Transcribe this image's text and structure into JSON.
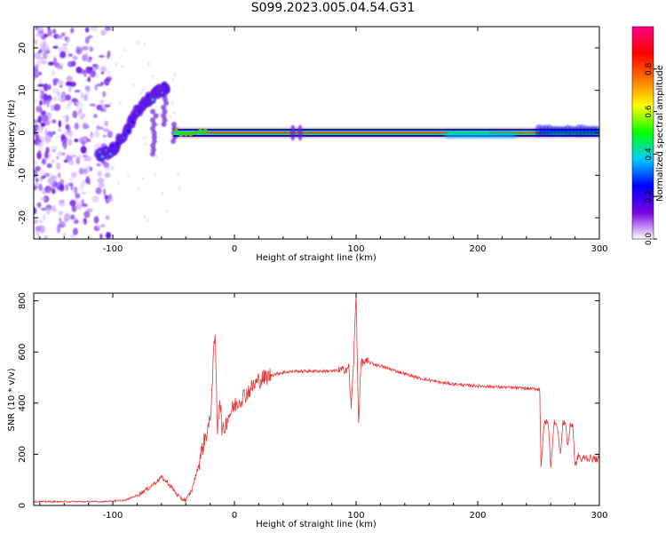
{
  "figure": {
    "title": "S099.2023.005.04.54.G31"
  },
  "chart_data": [
    {
      "type": "heatmap",
      "panel": "top",
      "xlabel": "Height of straight line (km)",
      "ylabel": "Frequency (Hz)",
      "xlim": [
        -165,
        300
      ],
      "ylim": [
        -25,
        25
      ],
      "xticks": [
        -100,
        0,
        100,
        200,
        300
      ],
      "xtick_labels": [
        "-100",
        "0",
        "100",
        "200",
        "300"
      ],
      "yticks": [
        -20,
        -10,
        0,
        10,
        20
      ],
      "ytick_labels": [
        "-20",
        "-10",
        "0",
        "10",
        "20"
      ],
      "colorbar": {
        "label": "Normalized spectral amplitude",
        "range": [
          0.0,
          1.0
        ],
        "ticks": [
          0.0,
          0.2,
          0.4,
          0.6,
          0.8
        ],
        "tick_labels": [
          "0.0",
          "0.2",
          "0.4",
          "0.6",
          "0.8"
        ],
        "colors": [
          "#ffffff",
          "#7a00e6",
          "#0000ff",
          "#00ccff",
          "#00ff00",
          "#ffff00",
          "#ff7700",
          "#ff0000",
          "#ff0088"
        ]
      },
      "features": {
        "noise_region_x": [
          -165,
          -110
        ],
        "rising_trace": [
          [
            -112,
            -5.5
          ],
          [
            -100,
            -4
          ],
          [
            -90,
            0
          ],
          [
            -80,
            5
          ],
          [
            -70,
            8
          ],
          [
            -62,
            10
          ],
          [
            -55,
            11
          ]
        ],
        "carrier_line_freq": 0.0,
        "carrier_start_x": -50,
        "carrier_end_x": 300
      }
    },
    {
      "type": "line",
      "panel": "bottom",
      "xlabel": "Height of straight line (km)",
      "ylabel": "SNR (10 * v/v)",
      "xlim": [
        -165,
        300
      ],
      "ylim": [
        0,
        830
      ],
      "xticks": [
        -100,
        0,
        100,
        200,
        300
      ],
      "xtick_labels": [
        "-100",
        "0",
        "100",
        "200",
        "300"
      ],
      "yticks": [
        0,
        200,
        400,
        600,
        800
      ],
      "ytick_labels": [
        "0",
        "200",
        "400",
        "600",
        "800"
      ],
      "series": [
        {
          "color": "#ee3333",
          "x": [
            -165,
            -140,
            -110,
            -90,
            -80,
            -70,
            -60,
            -55,
            -45,
            -40,
            -35,
            -30,
            -25,
            -20,
            -16,
            -14,
            -12,
            -10,
            -5,
            0,
            10,
            20,
            30,
            40,
            50,
            60,
            70,
            80,
            90,
            94,
            96,
            98,
            100,
            102,
            104,
            110,
            120,
            130,
            150,
            170,
            190,
            210,
            230,
            250,
            251,
            252,
            255,
            258,
            260,
            263,
            265,
            268,
            270,
            272,
            274,
            276,
            278,
            280,
            283,
            285,
            288,
            290,
            300
          ],
          "y": [
            15,
            15,
            15,
            20,
            40,
            70,
            110,
            90,
            30,
            20,
            60,
            150,
            250,
            330,
            680,
            300,
            420,
            280,
            350,
            390,
            440,
            490,
            510,
            520,
            525,
            525,
            525,
            525,
            530,
            540,
            380,
            570,
            830,
            320,
            560,
            560,
            545,
            530,
            500,
            480,
            470,
            465,
            460,
            455,
            450,
            160,
            330,
            320,
            150,
            330,
            320,
            200,
            320,
            330,
            230,
            310,
            320,
            150,
            200,
            175,
            190,
            185,
            180
          ]
        }
      ]
    }
  ]
}
